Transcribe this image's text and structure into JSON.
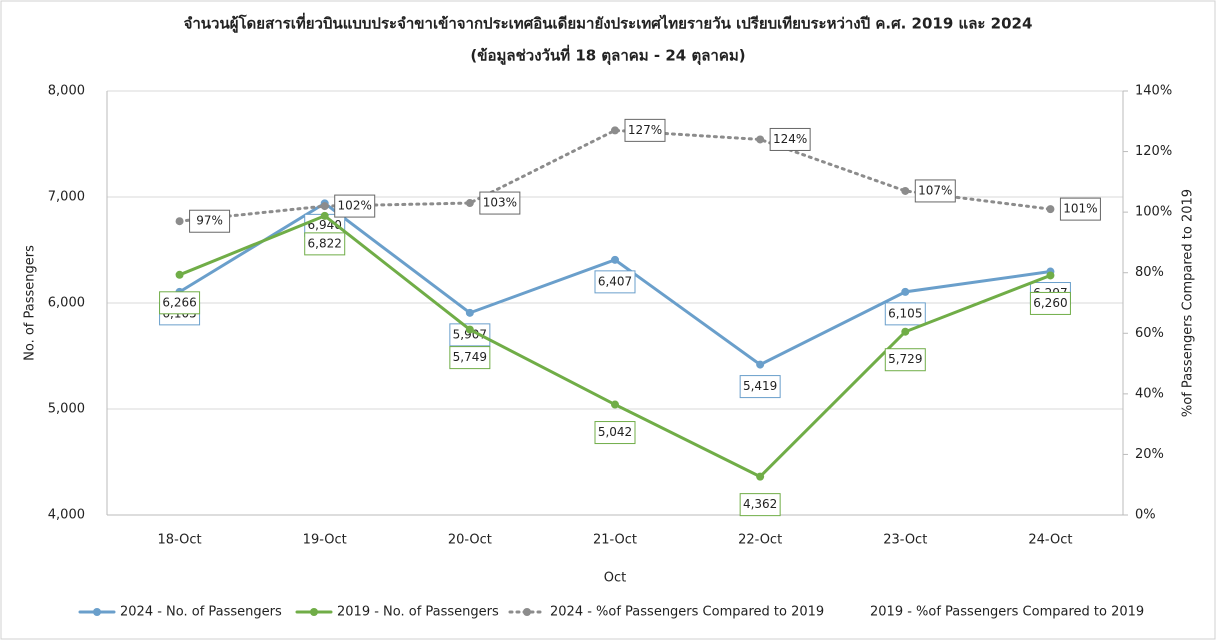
{
  "chart_data": {
    "type": "line",
    "title": "จำนวนผู้โดยสารเที่ยวบินแบบประจำขาเข้าจากประเทศอินเดียมายังประเทศไทยรายวัน เปรียบเทียบระหว่างปี ค.ศ. 2019 และ 2024",
    "subtitle": "(ข้อมูลช่วงวันที่ 18 ตุลาคม - 24 ตุลาคม)",
    "x_label": "Oct",
    "y_label": "No. of Passengers",
    "y2_label": "%of Passengers Compared to 2019",
    "categories": [
      "18-Oct",
      "19-Oct",
      "20-Oct",
      "21-Oct",
      "22-Oct",
      "23-Oct",
      "24-Oct"
    ],
    "ylim": [
      4000,
      8000
    ],
    "yticks": [
      {
        "value": 4000,
        "label": "4,000"
      },
      {
        "value": 5000,
        "label": "5,000"
      },
      {
        "value": 6000,
        "label": "6,000"
      },
      {
        "value": 7000,
        "label": "7,000"
      },
      {
        "value": 8000,
        "label": "8,000"
      }
    ],
    "y2lim": [
      0,
      140
    ],
    "y2ticks": [
      {
        "value": 0,
        "label": "0%"
      },
      {
        "value": 20,
        "label": "20%"
      },
      {
        "value": 40,
        "label": "40%"
      },
      {
        "value": 60,
        "label": "60%"
      },
      {
        "value": 80,
        "label": "80%"
      },
      {
        "value": 100,
        "label": "100%"
      },
      {
        "value": 120,
        "label": "120%"
      },
      {
        "value": 140,
        "label": "140%"
      }
    ],
    "grid": true,
    "legend": "bottom",
    "series": [
      {
        "name": "2024 - No. of Passengers",
        "color": "#6a9fcb",
        "style": "solid",
        "values": [
          6105,
          6940,
          5907,
          6407,
          5419,
          6105,
          6297
        ],
        "value_labels": [
          "6,105",
          "6,940",
          "5,907",
          "6,407",
          "5,419",
          "6,105",
          "6,297"
        ]
      },
      {
        "name": "2019 - No. of Passengers",
        "color": "#70ad47",
        "style": "solid",
        "values": [
          6266,
          6822,
          5749,
          5042,
          4362,
          5729,
          6260
        ],
        "value_labels": [
          "6,266",
          "6,822",
          "5,749",
          "5,042",
          "4,362",
          "5,729",
          "6,260"
        ]
      },
      {
        "name": "2024 - %of Passengers Compared to 2019",
        "color": "#8c8c8c",
        "style": "dotted",
        "axis": "y2",
        "values": [
          97,
          102,
          103,
          127,
          124,
          107,
          101
        ],
        "value_labels": [
          "97%",
          "102%",
          "103%",
          "127%",
          "124%",
          "107%",
          "101%"
        ]
      },
      {
        "name": "2019 - %of Passengers Compared to 2019",
        "color": "none",
        "style": "none",
        "axis": "y2",
        "values": [
          null,
          null,
          null,
          null,
          null,
          null,
          null
        ]
      }
    ]
  }
}
